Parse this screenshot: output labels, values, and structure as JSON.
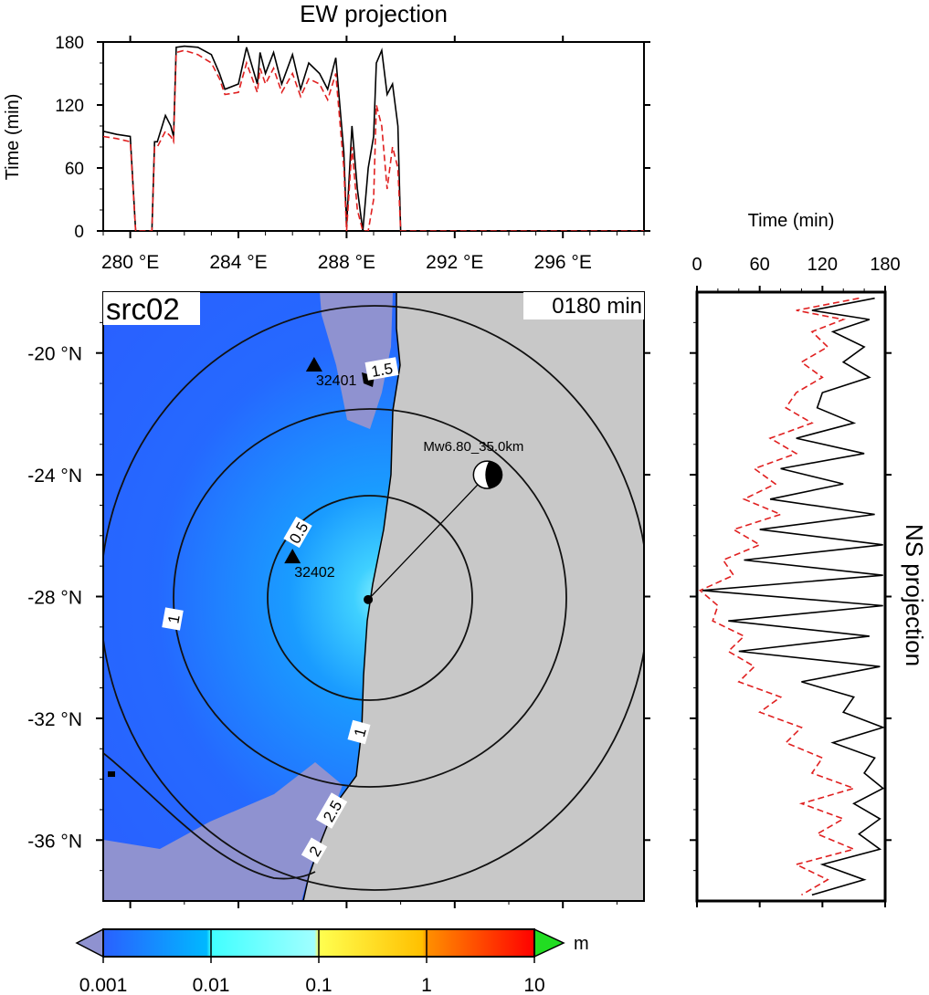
{
  "top_panel": {
    "title": "EW projection",
    "ylabel": "Time (min)",
    "yticks": [
      "0",
      "60",
      "120",
      "180"
    ],
    "xticks": [
      "280 °E",
      "284 °E",
      "288 °E",
      "292 °E",
      "296 °E"
    ]
  },
  "right_panel": {
    "title": "NS projection",
    "xlabel": "Time (min)",
    "xticks": [
      "0",
      "60",
      "120",
      "180"
    ]
  },
  "map": {
    "label": "src02",
    "time_label": "0180 min",
    "yticks": [
      "-20 °N",
      "-24 °N",
      "-28 °N",
      "-32 °N",
      "-36 °N"
    ],
    "stations": [
      {
        "id": "32401",
        "display": "32401",
        "lon": 286.8,
        "lat": -20.4
      },
      {
        "id": "32402",
        "display": "32402",
        "lon": 286.0,
        "lat": -26.7
      }
    ],
    "source_label": "Mw6.80_35.0km",
    "epicenter": {
      "lon": 288.8,
      "lat": -28.1
    },
    "beachball": {
      "lon": 293.2,
      "lat": -24.0
    },
    "contour_labels": [
      "0.5",
      "1",
      "1.5",
      "1",
      "2.5",
      "2"
    ],
    "colors": {
      "land": "#c8c8c8",
      "lowest": "#8f92d0",
      "ocean": "#2a6cff"
    }
  },
  "colorbar": {
    "ticks": [
      "0.001",
      "0.01",
      "0.1",
      "1",
      "10"
    ],
    "unit": "m",
    "colors": [
      "#2a60ff",
      "#00b4ff",
      "#40ffff",
      "#ffff50",
      "#ffb000",
      "#ff0000"
    ]
  },
  "chart_data": [
    {
      "type": "line",
      "title": "EW projection",
      "ylabel": "Time (min)",
      "xlim": [
        279,
        299
      ],
      "ylim": [
        0,
        180
      ],
      "series": [
        {
          "color": "#000000",
          "style": "solid",
          "x": [
            279,
            279.5,
            280,
            280.2,
            280.3,
            280.8,
            280.9,
            281,
            281.3,
            281.5,
            281.6,
            281.7,
            282,
            282.5,
            283,
            283.3,
            283.5,
            284,
            284.3,
            284.7,
            284.8,
            285,
            285.3,
            285.6,
            286,
            286.3,
            286.6,
            287,
            287.3,
            287.6,
            287.9,
            288,
            288.2,
            288.4,
            288.6,
            288.8,
            289,
            289.1,
            289.3,
            289.5,
            289.7,
            289.9,
            290,
            290.1,
            291,
            295,
            299
          ],
          "y": [
            95,
            92,
            90,
            0,
            0,
            0,
            85,
            85,
            110,
            100,
            90,
            175,
            176,
            175,
            168,
            150,
            135,
            140,
            175,
            140,
            170,
            150,
            170,
            140,
            168,
            135,
            160,
            150,
            135,
            165,
            75,
            5,
            100,
            40,
            0,
            60,
            90,
            160,
            172,
            130,
            140,
            100,
            0,
            0,
            0,
            0,
            0
          ]
        },
        {
          "color": "#e02020",
          "style": "dashed",
          "x": [
            279,
            279.5,
            280,
            280.2,
            280.3,
            280.8,
            280.9,
            281,
            281.3,
            281.5,
            281.6,
            281.7,
            282,
            282.5,
            283,
            283.3,
            283.5,
            284,
            284.3,
            284.7,
            284.8,
            285,
            285.3,
            285.6,
            286,
            286.3,
            286.6,
            287,
            287.3,
            287.6,
            287.9,
            288,
            288.2,
            288.4,
            288.6,
            288.8,
            289,
            289.1,
            289.3,
            289.5,
            289.7,
            289.9,
            290,
            290.1,
            291,
            295,
            299
          ],
          "y": [
            90,
            88,
            85,
            0,
            0,
            0,
            80,
            80,
            95,
            90,
            85,
            170,
            172,
            168,
            160,
            145,
            130,
            132,
            160,
            132,
            155,
            140,
            155,
            132,
            150,
            128,
            145,
            140,
            125,
            150,
            60,
            0,
            80,
            20,
            0,
            0,
            30,
            120,
            100,
            40,
            80,
            60,
            0,
            0,
            0,
            0,
            0
          ]
        }
      ]
    },
    {
      "type": "line",
      "title": "NS projection",
      "xlabel": "Time (min)",
      "xlim": [
        0,
        180
      ],
      "ylim": [
        -38,
        -18
      ],
      "series": [
        {
          "color": "#000000",
          "style": "solid",
          "lat": [
            -18.2,
            -18.6,
            -18.9,
            -19.3,
            -19.8,
            -20.3,
            -20.8,
            -21.3,
            -21.8,
            -22.3,
            -22.8,
            -23.3,
            -23.8,
            -24.3,
            -24.8,
            -25.3,
            -25.8,
            -26.3,
            -26.8,
            -27.3,
            -27.8,
            -28.3,
            -28.8,
            -29.3,
            -29.8,
            -30.3,
            -30.8,
            -31.3,
            -31.8,
            -32.3,
            -32.8,
            -33.3,
            -33.8,
            -34.3,
            -34.8,
            -35.3,
            -35.8,
            -36.3,
            -36.8,
            -37.3,
            -37.8
          ],
          "time": [
            170,
            110,
            165,
            130,
            160,
            140,
            165,
            120,
            115,
            150,
            95,
            160,
            80,
            140,
            70,
            170,
            60,
            178,
            45,
            178,
            5,
            178,
            30,
            165,
            40,
            175,
            100,
            150,
            140,
            178,
            130,
            170,
            160,
            178,
            150,
            175,
            155,
            175,
            120,
            160,
            110
          ]
        },
        {
          "color": "#e02020",
          "style": "dashed",
          "lat": [
            -18.2,
            -18.6,
            -18.9,
            -19.3,
            -19.8,
            -20.3,
            -20.8,
            -21.3,
            -21.8,
            -22.3,
            -22.8,
            -23.3,
            -23.8,
            -24.3,
            -24.8,
            -25.3,
            -25.8,
            -26.3,
            -26.8,
            -27.3,
            -27.8,
            -28.3,
            -28.8,
            -29.3,
            -29.8,
            -30.3,
            -30.8,
            -31.3,
            -31.8,
            -32.3,
            -32.8,
            -33.3,
            -33.8,
            -34.3,
            -34.8,
            -35.3,
            -35.8,
            -36.3,
            -36.8,
            -37.3,
            -37.8
          ],
          "time": [
            155,
            95,
            140,
            110,
            125,
            100,
            120,
            95,
            85,
            110,
            70,
            95,
            55,
            75,
            45,
            80,
            35,
            60,
            25,
            35,
            3,
            20,
            15,
            45,
            30,
            55,
            40,
            80,
            60,
            100,
            85,
            120,
            110,
            150,
            100,
            140,
            115,
            150,
            95,
            125,
            100
          ]
        }
      ]
    }
  ]
}
